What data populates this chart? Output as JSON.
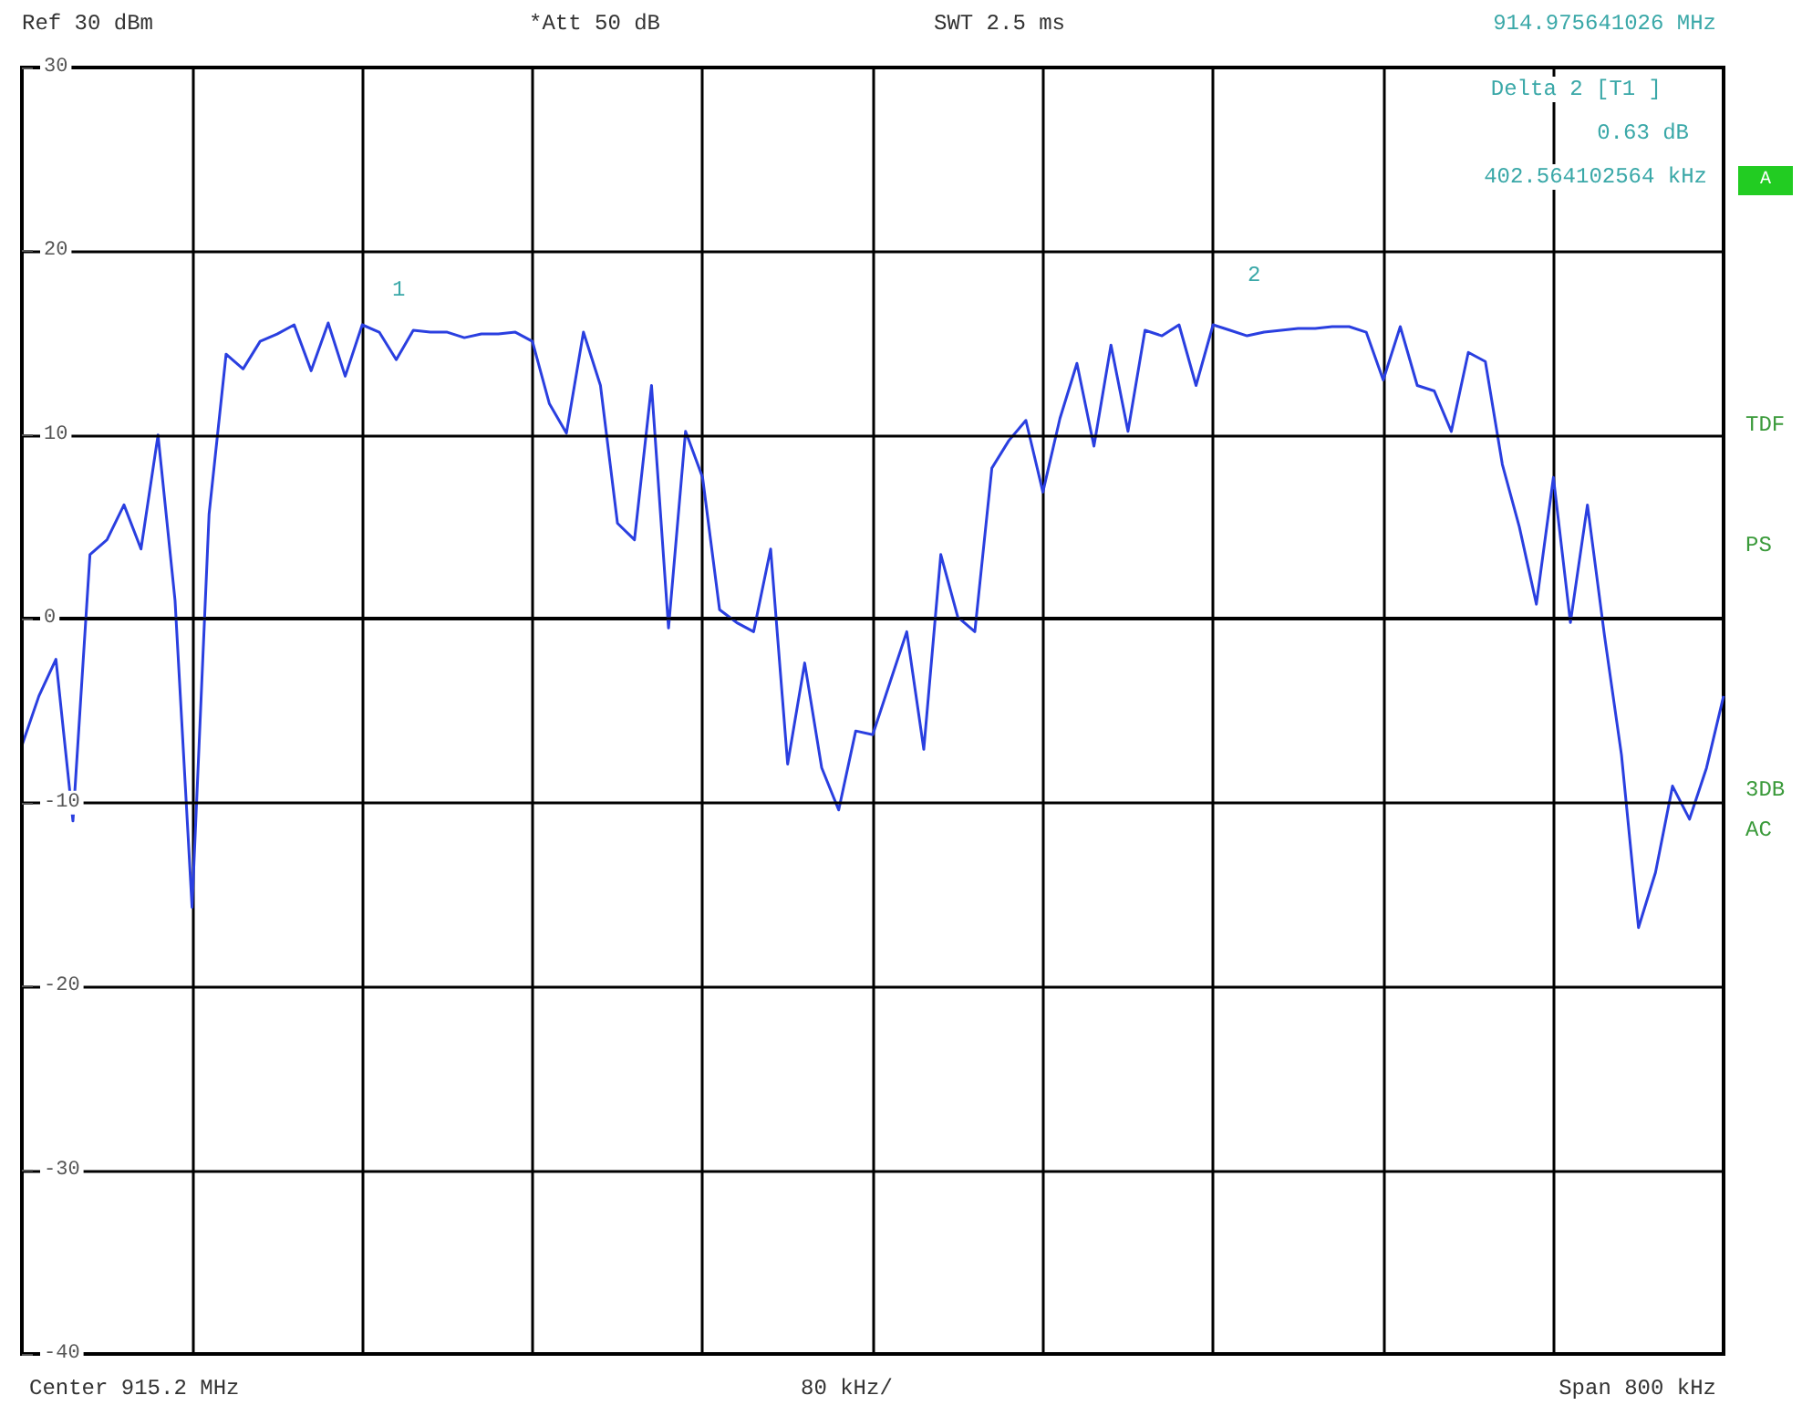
{
  "chart_data": {
    "type": "line",
    "categories": [
      null,
      null,
      null,
      null,
      null,
      null,
      null,
      null,
      null,
      null,
      null,
      null,
      null,
      null,
      null,
      null,
      null,
      null,
      null,
      null,
      null,
      null,
      null,
      null,
      null,
      null,
      null,
      null,
      null,
      null,
      null,
      null,
      null,
      null,
      null,
      null,
      null,
      null,
      null,
      null,
      null,
      null,
      null,
      null,
      null,
      null,
      null,
      null,
      null,
      null,
      null,
      null,
      null,
      null,
      null,
      null,
      null,
      null,
      null,
      null,
      null,
      null,
      null,
      null,
      null,
      null,
      null,
      null,
      null,
      null,
      null,
      null,
      null,
      null,
      null,
      null,
      null,
      null,
      null,
      null,
      null,
      null,
      null,
      null,
      null,
      null,
      null,
      null,
      null,
      null,
      null,
      null,
      null,
      null,
      null,
      null,
      null,
      null,
      null,
      null,
      null
    ],
    "series": [
      {
        "color": "#2a3fe0",
        "values": [
          -6.9,
          -4.2,
          -2.2,
          -11,
          3.5,
          4.3,
          6.2,
          3.8,
          10,
          1,
          -15.7,
          5.7,
          14.4,
          13.6,
          15.1,
          15.5,
          16,
          13.5,
          16.1,
          13.2,
          16,
          15.6,
          14.1,
          15.7,
          15.6,
          15.6,
          15.3,
          15.5,
          15.5,
          15.6,
          15.1,
          11.7,
          10.1,
          15.6,
          12.7,
          5.2,
          4.3,
          12.7,
          -0.5,
          10.2,
          7.7,
          0.5,
          -0.2,
          -0.7,
          3.8,
          -7.9,
          -2.4,
          -8.1,
          -10.4,
          -6.1,
          -6.3,
          -3.5,
          -0.7,
          -7.1,
          3.5,
          0.1,
          -0.7,
          8.2,
          9.7,
          10.8,
          6.9,
          10.9,
          13.9,
          9.4,
          14.9,
          10.2,
          15.7,
          15.4,
          16,
          12.7,
          16,
          15.7,
          15.4,
          15.6,
          15.7,
          15.8,
          15.8,
          15.9,
          15.9,
          15.6,
          13,
          15.9,
          12.7,
          12.4,
          10.2,
          14.5,
          14,
          8.4,
          5,
          0.8,
          7.7,
          -0.2,
          6.2,
          -0.9,
          -7.4,
          -16.8,
          -13.8,
          -9.1,
          -10.9,
          -8.1,
          -4.2
        ]
      }
    ],
    "ylim": [
      -40,
      30
    ],
    "yticks": [
      -40,
      -30,
      -20,
      -10,
      0,
      10,
      20,
      30
    ],
    "tick_labels": "y",
    "grid": true,
    "marker": "none",
    "line_style": "solid",
    "annotations": [
      "1",
      "2",
      "Ref 30 dBm",
      "*Att 50 dB",
      "SWT 2.5 ms",
      "914.975641026 MHz",
      "Delta 2 [T1 ]",
      "0.63 dB",
      "402.564102564 kHz",
      "A",
      "TDF",
      "PS",
      "3DB",
      "AC",
      "Center 915.2 MHz",
      "80 kHz/",
      "Span 800 kHz"
    ]
  }
}
